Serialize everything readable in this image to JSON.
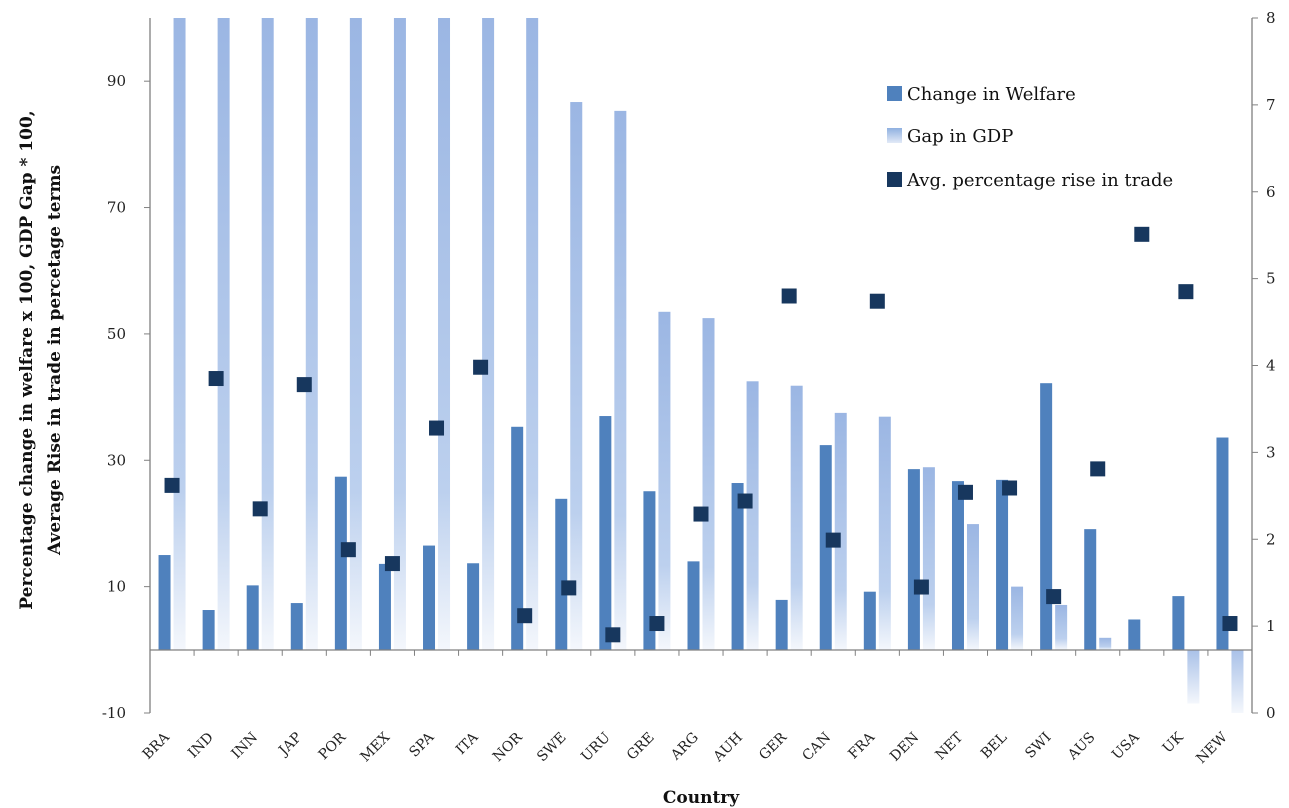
{
  "chart_data": {
    "type": "bar",
    "categories": [
      "BRA",
      "IND",
      "INN",
      "JAP",
      "POR",
      "MEX",
      "SPA",
      "ITA",
      "NOR",
      "SWE",
      "URU",
      "GRE",
      "ARG",
      "AUH",
      "GER",
      "CAN",
      "FRA",
      "DEN",
      "NET",
      "BEL",
      "SWI",
      "AUS",
      "USA",
      "UK",
      "NEW"
    ],
    "series": [
      {
        "name": "Change in Welfare",
        "axis": "left",
        "kind": "bar",
        "color": "#4f81bd",
        "values": [
          15,
          6.3,
          10.2,
          7.4,
          27.4,
          13.6,
          16.5,
          13.7,
          35.3,
          23.9,
          37,
          25.1,
          14,
          26.4,
          7.9,
          32.4,
          9.2,
          28.6,
          26.7,
          26.9,
          42.2,
          19.1,
          4.8,
          8.5,
          33.6
        ]
      },
      {
        "name": "Gap in GDP",
        "axis": "left",
        "kind": "gradient-bar",
        "color": "#a4bee6",
        "values": [
          110,
          110,
          110,
          110,
          110,
          110,
          110,
          110,
          110,
          86.7,
          85.3,
          53.5,
          52.5,
          42.5,
          41.8,
          37.5,
          36.9,
          28.9,
          19.9,
          10,
          7.1,
          1.9,
          0,
          -8.5,
          -10
        ]
      },
      {
        "name": "Avg. percentage rise in trade",
        "axis": "right",
        "kind": "marker",
        "color": "#17375e",
        "values": [
          2.62,
          3.85,
          2.35,
          3.78,
          1.88,
          1.72,
          3.28,
          3.98,
          1.12,
          1.44,
          0.9,
          1.03,
          2.29,
          2.44,
          4.8,
          1.99,
          4.74,
          1.45,
          2.54,
          2.59,
          1.34,
          2.81,
          5.51,
          4.85,
          1.03
        ]
      }
    ],
    "title": "",
    "xlabel": "Country",
    "ylabel_lines": [
      "Percentage change in welfare x 100, GDP Gap * 100,",
      "Average Rise in trade in percetage terms"
    ],
    "y_left": {
      "lim": [
        -10,
        100
      ],
      "ticks": [
        -10,
        10,
        30,
        50,
        70,
        90
      ]
    },
    "y_right": {
      "lim": [
        0,
        8
      ],
      "ticks": [
        0,
        1,
        2,
        3,
        4,
        5,
        6,
        7,
        8
      ]
    },
    "grid": false,
    "legend": {
      "position": "top-right"
    }
  }
}
